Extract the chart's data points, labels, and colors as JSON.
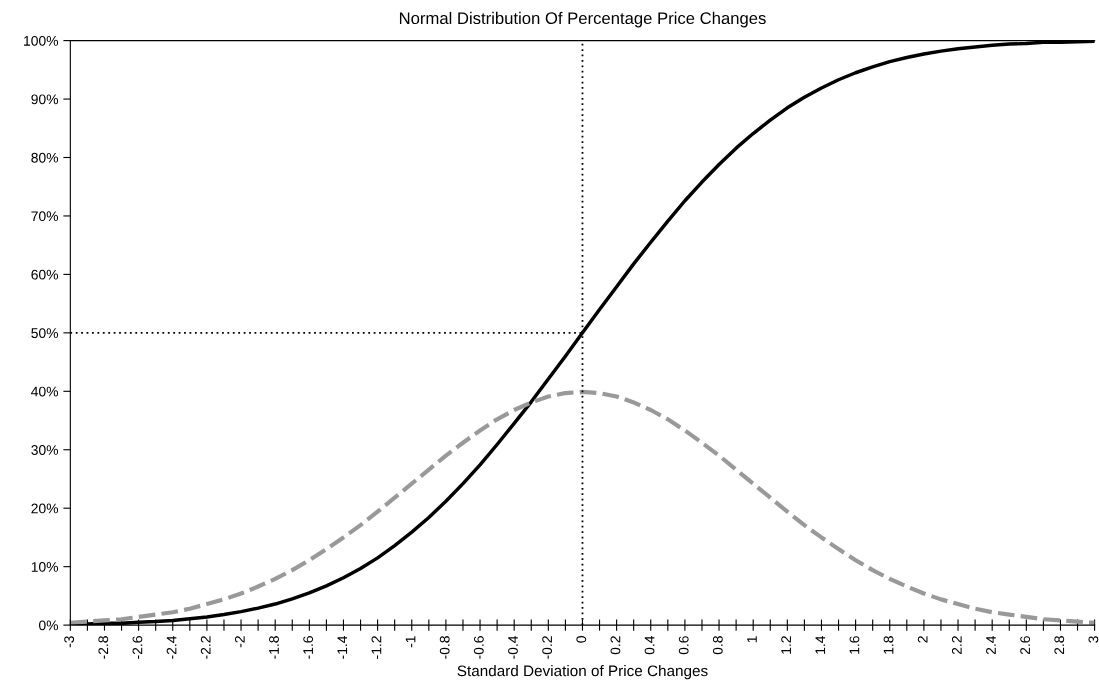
{
  "chart_data": {
    "type": "line",
    "title": "Normal Distribution Of Percentage Price Changes",
    "xlabel": "Standard Deviation of Price Changes",
    "categories": [
      "-3",
      null,
      "-2.8",
      null,
      "-2.6",
      null,
      "-2.4",
      null,
      "-2.2",
      null,
      "-2",
      null,
      "-1.8",
      null,
      "-1.6",
      null,
      "-1.4",
      null,
      "-1.2",
      null,
      "-1",
      null,
      "-0.8",
      null,
      "-0.6",
      null,
      "-0.4",
      null,
      "-0.2",
      null,
      "0",
      null,
      "0.2",
      null,
      "0.4",
      null,
      "0.6",
      null,
      "0.8",
      null,
      "1",
      null,
      "1.2",
      null,
      "1.4",
      null,
      "1.6",
      null,
      "1.8",
      null,
      "2",
      null,
      "2.2",
      null,
      "2.4",
      null,
      "2.6",
      null,
      "2.8",
      null,
      "3"
    ],
    "series": [
      {
        "color": "#000000",
        "line_style": "solid",
        "values": [
          0.1,
          0.2,
          0.3,
          0.3,
          0.5,
          0.6,
          0.8,
          1.1,
          1.4,
          1.8,
          2.3,
          2.9,
          3.6,
          4.5,
          5.5,
          6.7,
          8.1,
          9.7,
          11.5,
          13.6,
          15.9,
          18.4,
          21.2,
          24.2,
          27.4,
          30.9,
          34.5,
          38.2,
          42.1,
          46.0,
          50.0,
          54.0,
          57.9,
          61.8,
          65.5,
          69.1,
          72.6,
          75.8,
          78.8,
          81.6,
          84.1,
          86.4,
          88.5,
          90.3,
          91.9,
          93.3,
          94.5,
          95.5,
          96.4,
          97.1,
          97.7,
          98.2,
          98.6,
          98.9,
          99.2,
          99.4,
          99.5,
          99.7,
          99.7,
          99.8,
          99.9
        ]
      },
      {
        "color": "#999999",
        "line_style": "dashed",
        "values": [
          0.4,
          0.6,
          0.8,
          1.0,
          1.4,
          1.8,
          2.2,
          2.8,
          3.6,
          4.4,
          5.4,
          6.6,
          7.9,
          9.4,
          11.1,
          13.0,
          15.0,
          17.1,
          19.4,
          21.8,
          24.2,
          26.6,
          29.0,
          31.2,
          33.3,
          35.2,
          36.8,
          38.1,
          39.1,
          39.7,
          39.9,
          39.7,
          39.1,
          38.1,
          36.8,
          35.2,
          33.3,
          31.2,
          29.0,
          26.6,
          24.2,
          21.8,
          19.4,
          17.1,
          15.0,
          13.0,
          11.1,
          9.4,
          7.9,
          6.6,
          5.4,
          4.4,
          3.6,
          2.8,
          2.2,
          1.8,
          1.4,
          1.0,
          0.8,
          0.6,
          0.4
        ]
      }
    ],
    "ylim": [
      0,
      100
    ],
    "yticks": [
      {
        "value": 0,
        "label": "0%"
      },
      {
        "value": 10,
        "label": "10%"
      },
      {
        "value": 20,
        "label": "20%"
      },
      {
        "value": 30,
        "label": "30%"
      },
      {
        "value": 40,
        "label": "40%"
      },
      {
        "value": 50,
        "label": "50%"
      },
      {
        "value": 60,
        "label": "60%"
      },
      {
        "value": 70,
        "label": "70%"
      },
      {
        "value": 80,
        "label": "80%"
      },
      {
        "value": 90,
        "label": "90%"
      },
      {
        "value": 100,
        "label": "100%"
      }
    ],
    "ref_lines": [
      {
        "axis": "x",
        "value": "0",
        "color": "#000000",
        "line_style": "dotted"
      },
      {
        "axis": "y",
        "value": 50,
        "color": "#000000",
        "line_style": "dotted"
      }
    ],
    "grid": false,
    "legend": false
  }
}
